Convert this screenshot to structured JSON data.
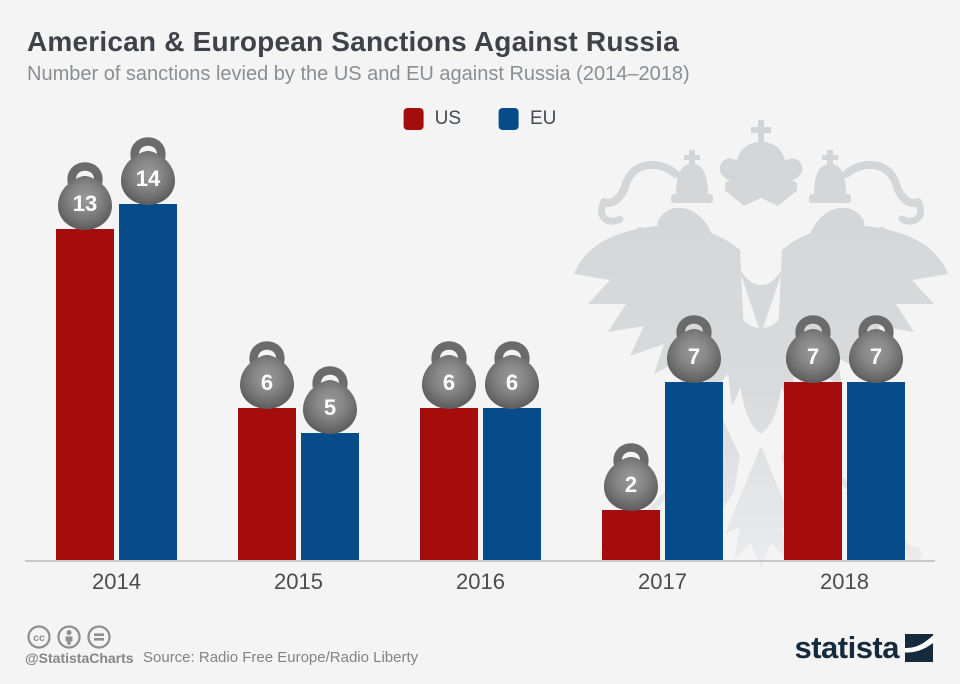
{
  "header": {
    "title": "American & European Sanctions Against Russia",
    "subtitle": "Number of sanctions levied by the US and EU against Russia (2014–2018)"
  },
  "legend": {
    "items": [
      {
        "label": "US",
        "color": "#a50c0c"
      },
      {
        "label": "EU",
        "color": "#064c8b"
      }
    ]
  },
  "chart_data": {
    "type": "bar",
    "categories": [
      "2014",
      "2015",
      "2016",
      "2017",
      "2018"
    ],
    "series": [
      {
        "name": "US",
        "color": "#a50c0c",
        "values": [
          13,
          6,
          6,
          2,
          7
        ]
      },
      {
        "name": "EU",
        "color": "#064c8b",
        "values": [
          14,
          5,
          6,
          7,
          7
        ]
      }
    ],
    "title": "American & European Sanctions Against Russia",
    "xlabel": "",
    "ylabel": "Number of sanctions",
    "ylim": [
      0,
      14
    ],
    "grid": false,
    "legend_position": "top-center",
    "value_marker": {
      "shape": "kettlebell-weight",
      "fill_center": "#969696",
      "fill_edge": "#565656",
      "handle_color": "#6b6b6b",
      "label_color": "#ffffff"
    },
    "axis_line_color": "#c9c9c9"
  },
  "watermark": {
    "name": "russian-double-headed-eagle-coat-of-arms",
    "color": "#d4d6d8"
  },
  "footer": {
    "license_icons": [
      "cc-icon",
      "attribution-icon",
      "equals-icon"
    ],
    "handle": "@StatistaCharts",
    "source": "Source: Radio Free Europe/Radio Liberty",
    "brand": "statista"
  }
}
